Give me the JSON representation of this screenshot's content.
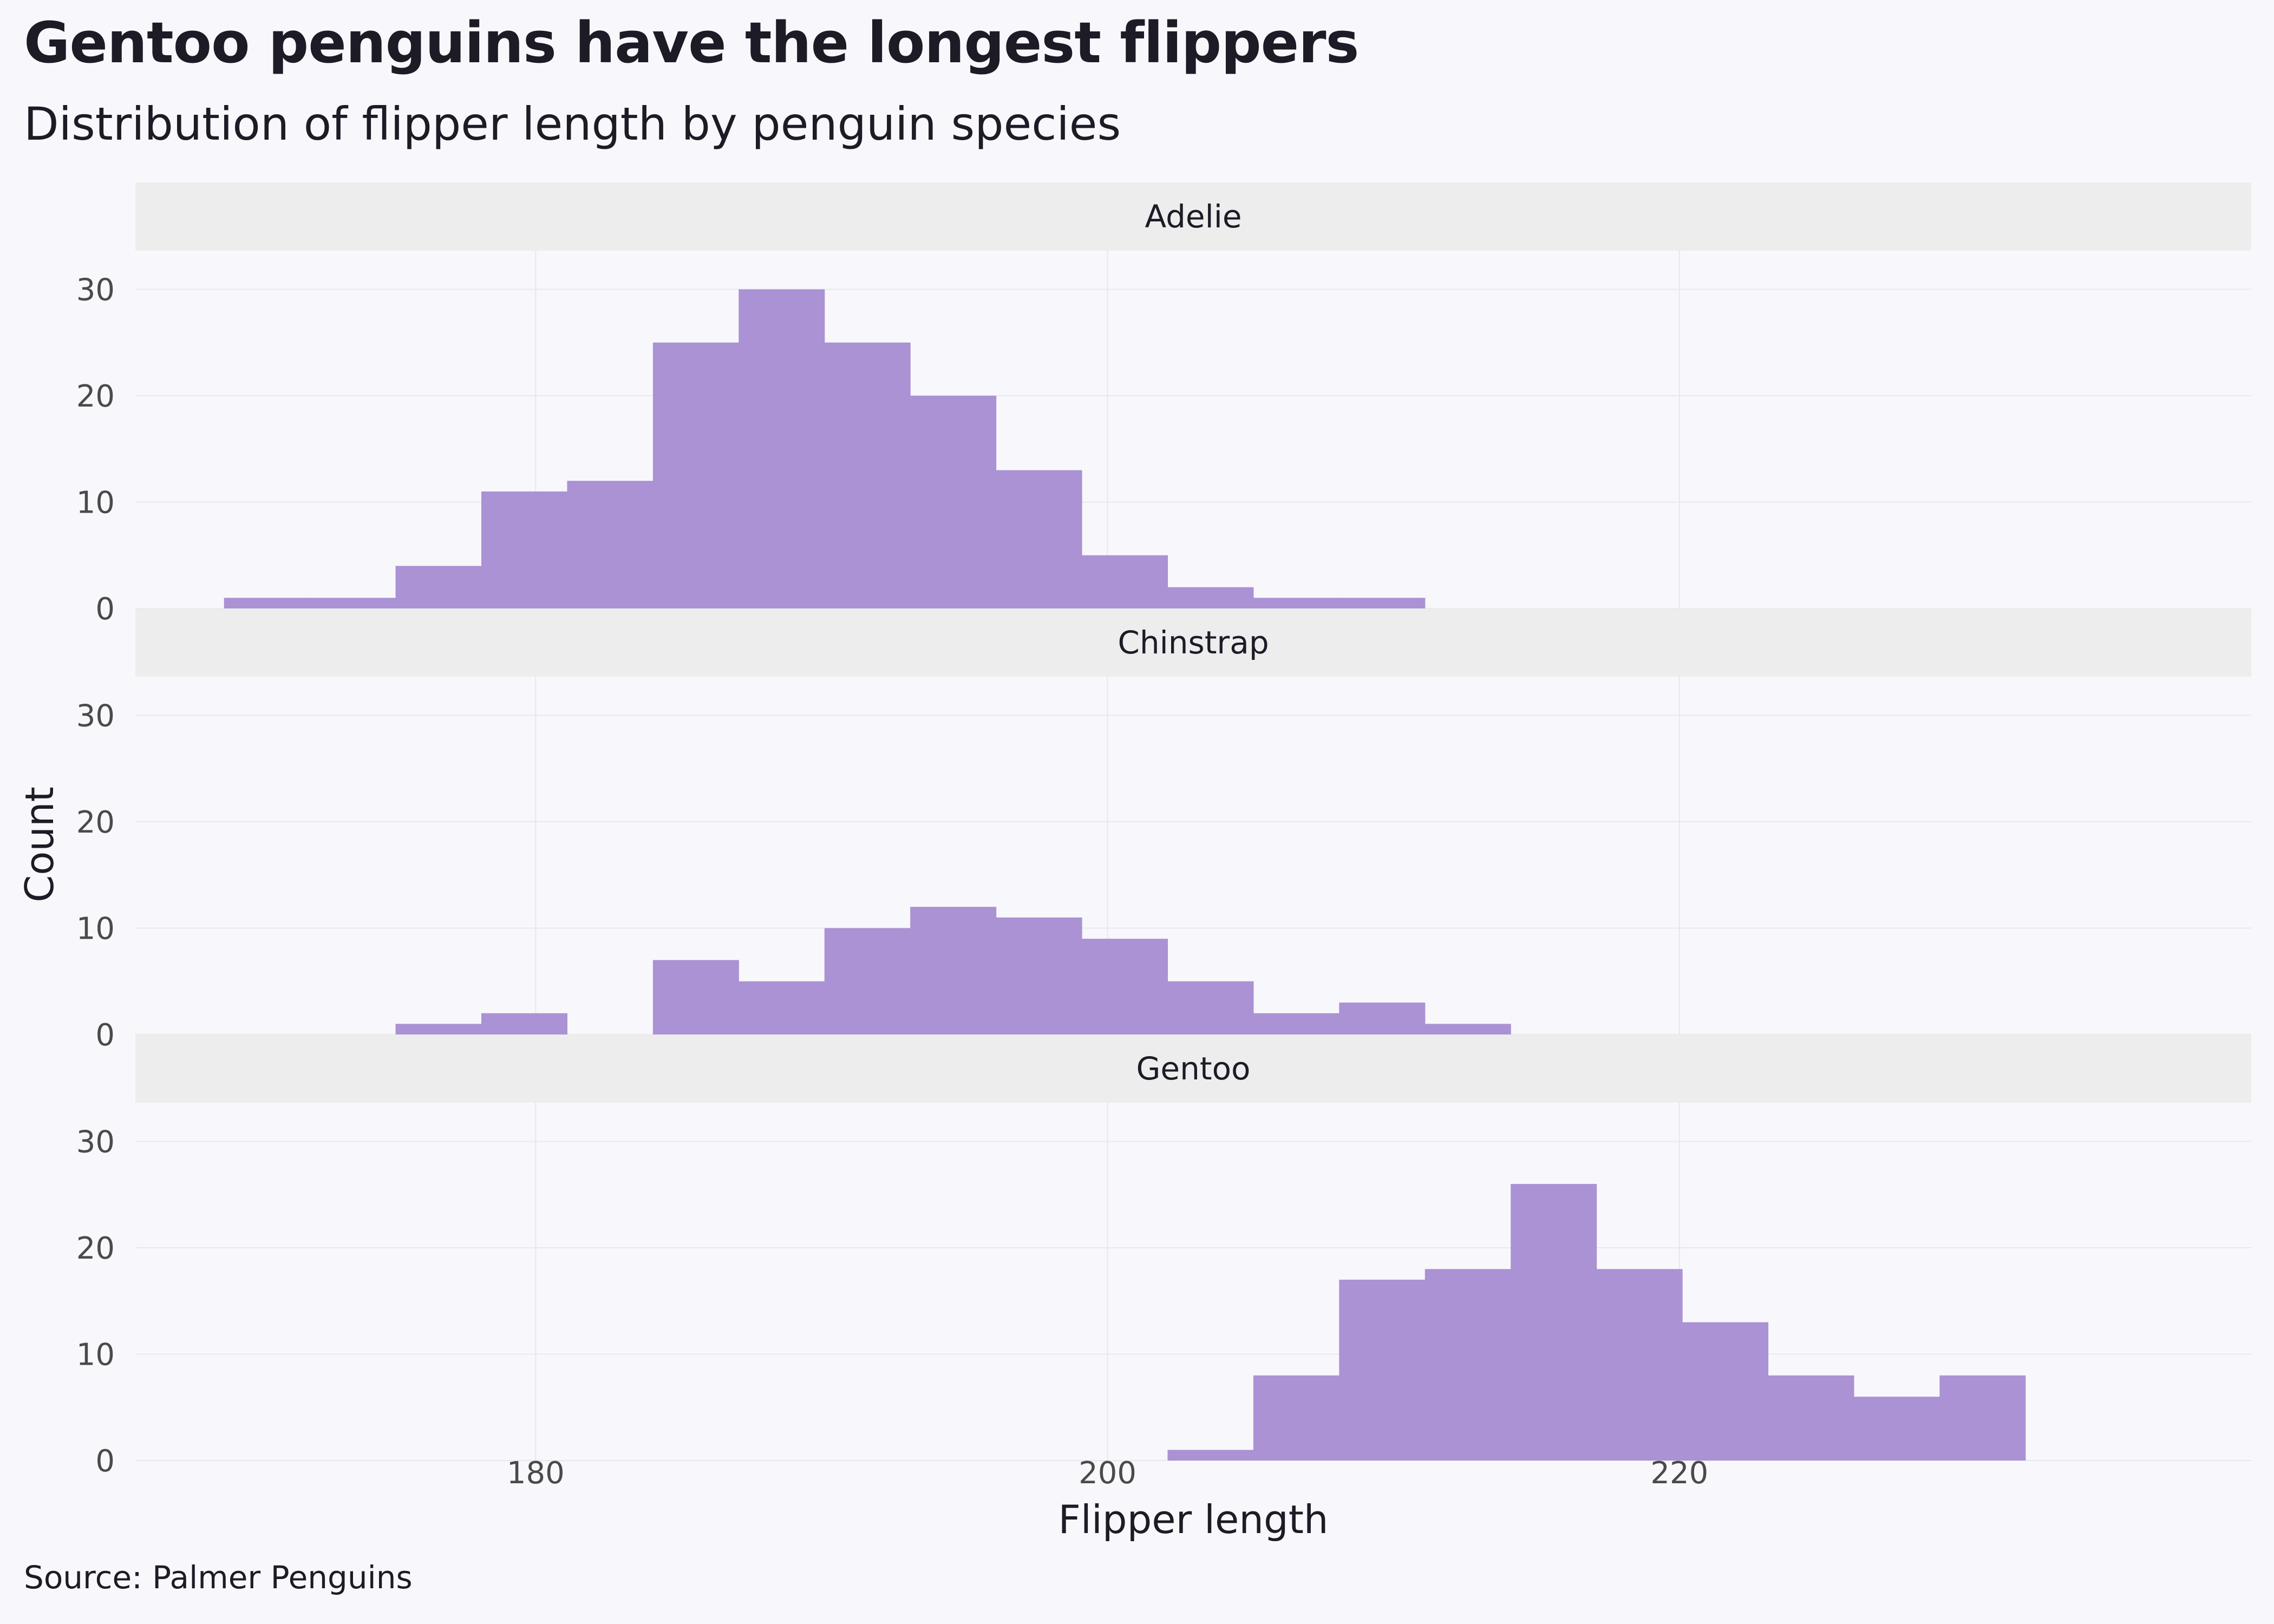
{
  "title": "Gentoo penguins have the longest flippers",
  "subtitle": "Distribution of flipper length by penguin species",
  "source": "Source: Palmer Penguins",
  "colors": {
    "bar": "#aa92d4",
    "strip": "#ededed",
    "grid": "#e7e7ee",
    "background": "#f8f8fc"
  },
  "chart_data": {
    "type": "bar",
    "subtype": "faceted-histogram",
    "xlabel": "Flipper length",
    "ylabel": "Count",
    "xlim": [
      166,
      240
    ],
    "ylim": [
      0,
      30
    ],
    "x_ticks": [
      180,
      200,
      220
    ],
    "y_ticks": [
      0,
      10,
      20,
      30
    ],
    "grid": true,
    "bin_edges": [
      169.1,
      172.1,
      175.1,
      178.1,
      181.1,
      184.1,
      187.1,
      190.1,
      193.1,
      196.1,
      199.1,
      202.1,
      205.1,
      208.1,
      211.1,
      214.1,
      217.1,
      220.1,
      223.1,
      226.1,
      229.1,
      232.1
    ],
    "facets": [
      {
        "name": "Adelie",
        "values": [
          1,
          1,
          4,
          11,
          12,
          25,
          30,
          25,
          20,
          13,
          5,
          2,
          1,
          1,
          0,
          0,
          0,
          0,
          0,
          0,
          0
        ]
      },
      {
        "name": "Chinstrap",
        "values": [
          0,
          0,
          1,
          2,
          0,
          7,
          5,
          10,
          12,
          11,
          9,
          5,
          2,
          3,
          1,
          0,
          0,
          0,
          0,
          0,
          0
        ]
      },
      {
        "name": "Gentoo",
        "values": [
          0,
          0,
          0,
          0,
          0,
          0,
          0,
          0,
          0,
          0,
          0,
          1,
          8,
          17,
          18,
          26,
          18,
          13,
          8,
          6,
          8
        ]
      }
    ]
  }
}
